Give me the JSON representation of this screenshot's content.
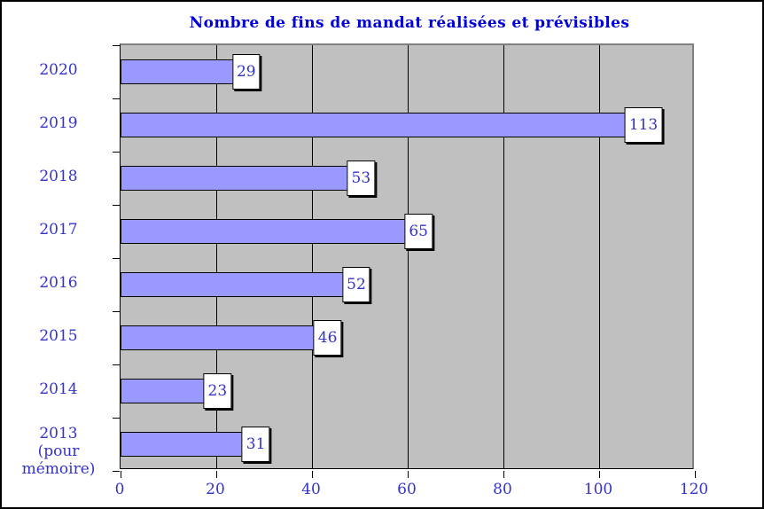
{
  "chart_data": {
    "type": "bar",
    "orientation": "horizontal",
    "title": "Nombre de fins de mandat réalisées et prévisibles",
    "categories": [
      {
        "label": "2020",
        "sublabel": ""
      },
      {
        "label": "2019",
        "sublabel": ""
      },
      {
        "label": "2018",
        "sublabel": ""
      },
      {
        "label": "2017",
        "sublabel": ""
      },
      {
        "label": "2016",
        "sublabel": ""
      },
      {
        "label": "2015",
        "sublabel": ""
      },
      {
        "label": "2014",
        "sublabel": ""
      },
      {
        "label": "2013",
        "sublabel": "(pour mémoire)"
      }
    ],
    "values": [
      29,
      113,
      53,
      65,
      52,
      46,
      23,
      31
    ],
    "data_labels": [
      "29",
      "113",
      "53",
      "65",
      "52",
      "46",
      "23",
      "31"
    ],
    "xlabel": "",
    "ylabel": "",
    "xlim": [
      0,
      120
    ],
    "xticks": [
      0,
      20,
      40,
      60,
      80,
      100,
      120
    ],
    "grid": "vertical-major",
    "legend": "none",
    "colors": {
      "bar_fill": "#9999ff",
      "bar_border": "#000000",
      "plot_background": "#c0c0c0",
      "plot_border": "#808080",
      "gridline": "#000000",
      "axis_line": "#000000",
      "title_text": "#0000d8",
      "axis_text": "#3333cc",
      "label_box_fill": "#ffffff",
      "label_box_border": "#000000",
      "label_box_shadow": "#000000",
      "chart_background": "#ffffff"
    }
  }
}
